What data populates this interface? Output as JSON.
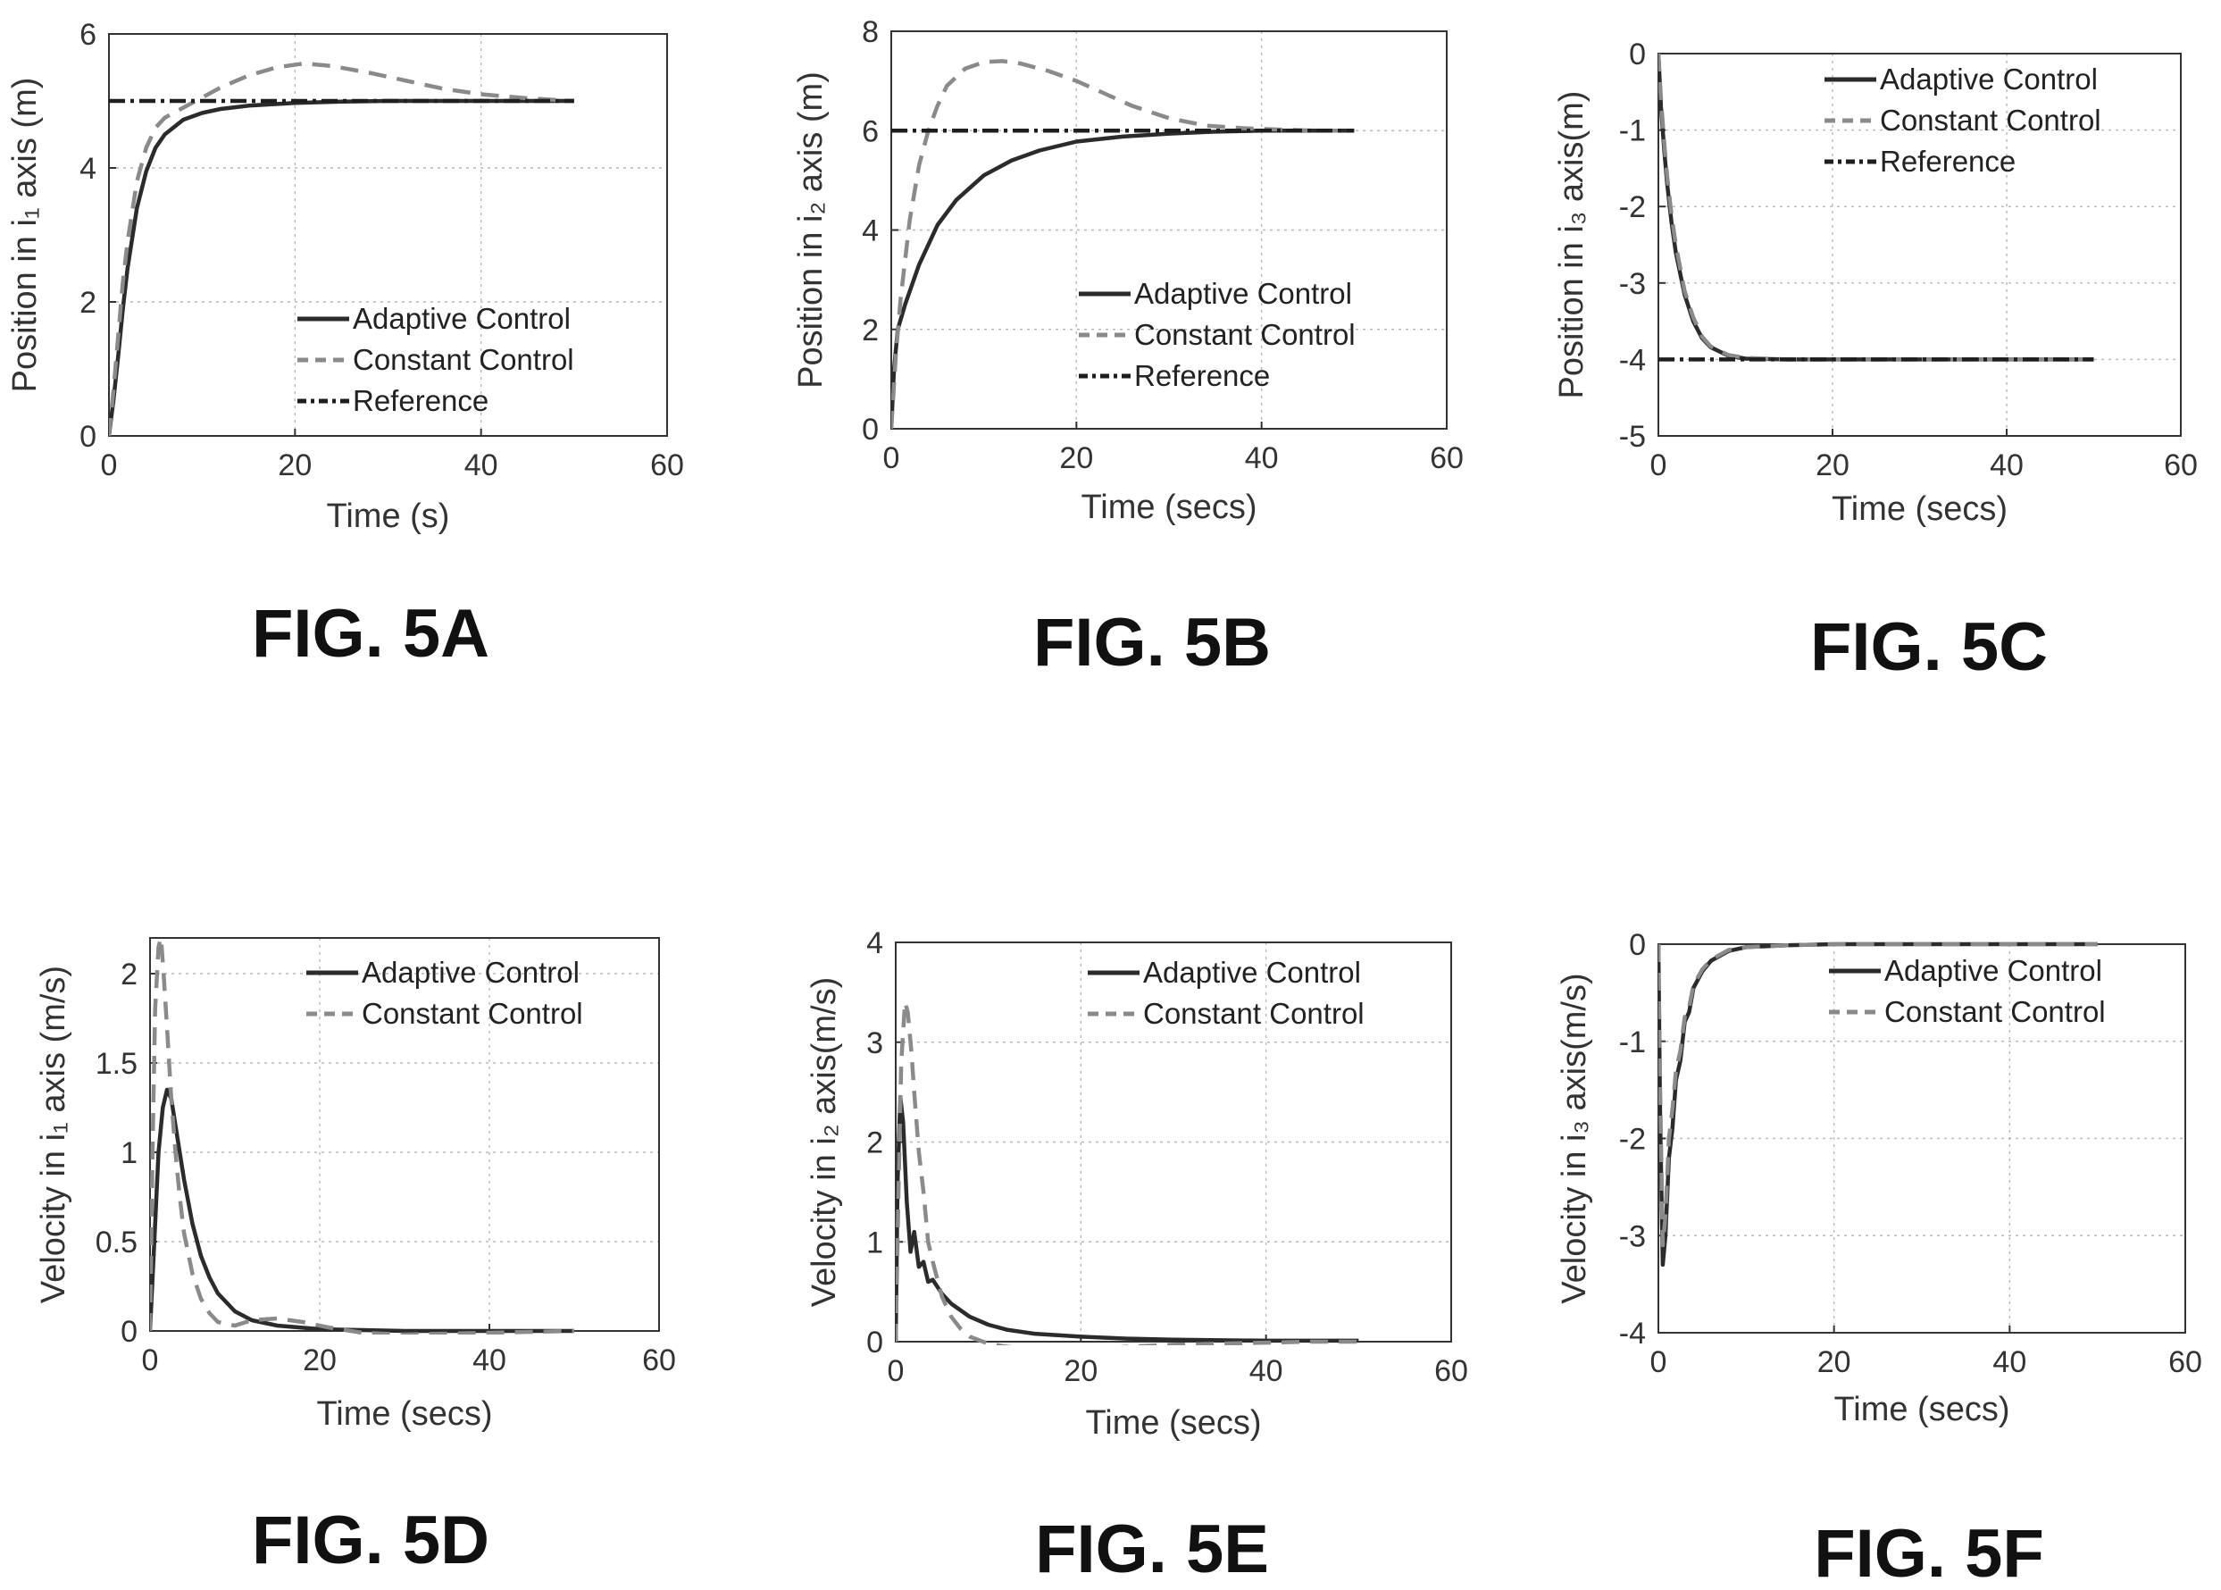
{
  "figures": [
    {
      "label": "FIG. 5A"
    },
    {
      "label": "FIG. 5B"
    },
    {
      "label": "FIG. 5C"
    },
    {
      "label": "FIG. 5D"
    },
    {
      "label": "FIG. 5E"
    },
    {
      "label": "FIG. 5F"
    }
  ],
  "colors": {
    "adaptive": "#2b2b2b",
    "constant": "#8a8a8a",
    "reference": "#1e1e1e",
    "grid": "#b8b8b8",
    "axes": "#333333"
  },
  "chart_data": [
    {
      "type": "line",
      "xlabel": "Time (s)",
      "ylabel": "Position in i₁ axis (m)",
      "xlim": [
        0,
        60
      ],
      "ylim": [
        0,
        6
      ],
      "xticks": [
        0,
        20,
        40,
        60
      ],
      "yticks": [
        0,
        2,
        4,
        6
      ],
      "grid": true,
      "legend_position": "bottom-right",
      "series": [
        {
          "name": "Adaptive Control",
          "style": "solid",
          "x": [
            0,
            0.5,
            1,
            1.5,
            2,
            3,
            4,
            5,
            6,
            8,
            10,
            12,
            15,
            20,
            25,
            30,
            40,
            50
          ],
          "y": [
            0,
            0.55,
            1.2,
            1.9,
            2.5,
            3.4,
            3.95,
            4.3,
            4.5,
            4.72,
            4.82,
            4.88,
            4.93,
            4.97,
            4.99,
            5.0,
            5.0,
            5.0
          ]
        },
        {
          "name": "Constant Control",
          "style": "dashed",
          "x": [
            0,
            0.5,
            1,
            1.5,
            2,
            3,
            4,
            5,
            6,
            8,
            10,
            12,
            15,
            18,
            21,
            24,
            28,
            32,
            36,
            40,
            45,
            50
          ],
          "y": [
            0,
            0.7,
            1.5,
            2.3,
            2.9,
            3.8,
            4.3,
            4.6,
            4.75,
            4.9,
            5.05,
            5.2,
            5.38,
            5.5,
            5.56,
            5.52,
            5.42,
            5.3,
            5.18,
            5.1,
            5.04,
            5.0
          ]
        },
        {
          "name": "Reference",
          "style": "dashdot",
          "x": [
            0,
            50
          ],
          "y": [
            5,
            5
          ]
        }
      ]
    },
    {
      "type": "line",
      "xlabel": "Time (secs)",
      "ylabel": "Position in i₂ axis (m)",
      "xlim": [
        0,
        60
      ],
      "ylim": [
        0,
        8
      ],
      "xticks": [
        0,
        20,
        40,
        60
      ],
      "yticks": [
        0,
        2,
        4,
        6,
        8
      ],
      "grid": true,
      "legend_position": "bottom-right",
      "series": [
        {
          "name": "Adaptive Control",
          "style": "solid",
          "x": [
            0,
            0.3,
            0.7,
            1.5,
            3,
            5,
            7,
            10,
            13,
            16,
            20,
            25,
            30,
            35,
            40,
            50
          ],
          "y": [
            0,
            1.2,
            2.0,
            2.5,
            3.3,
            4.1,
            4.6,
            5.1,
            5.4,
            5.6,
            5.78,
            5.88,
            5.94,
            5.98,
            6.0,
            6.0
          ]
        },
        {
          "name": "Constant Control",
          "style": "dashed",
          "x": [
            0,
            0.5,
            1,
            2,
            3,
            4,
            5,
            6,
            8,
            10,
            12,
            14,
            17,
            20,
            23,
            26,
            30,
            34,
            38,
            42,
            46,
            50
          ],
          "y": [
            0,
            1.5,
            2.6,
            4.2,
            5.3,
            6.0,
            6.5,
            6.9,
            7.25,
            7.38,
            7.4,
            7.35,
            7.2,
            7.0,
            6.75,
            6.5,
            6.25,
            6.1,
            6.05,
            6.02,
            6.0,
            6.0
          ]
        },
        {
          "name": "Reference",
          "style": "dashdot",
          "x": [
            0,
            50
          ],
          "y": [
            6,
            6
          ]
        }
      ]
    },
    {
      "type": "line",
      "xlabel": "Time (secs)",
      "ylabel": "Position in i₃ axis(m)",
      "xlim": [
        0,
        60
      ],
      "ylim": [
        -5,
        0
      ],
      "xticks": [
        0,
        20,
        40,
        60
      ],
      "yticks": [
        -5,
        -4,
        -3,
        -2,
        -1,
        0
      ],
      "grid": true,
      "legend_position": "top-right",
      "series": [
        {
          "name": "Adaptive Control",
          "style": "solid",
          "x": [
            0,
            0.3,
            0.7,
            1,
            1.5,
            2,
            3,
            4,
            5,
            6,
            8,
            10,
            15,
            20,
            30,
            40,
            50
          ],
          "y": [
            0,
            -0.7,
            -1.3,
            -1.7,
            -2.2,
            -2.6,
            -3.15,
            -3.5,
            -3.72,
            -3.84,
            -3.95,
            -3.99,
            -4.0,
            -4.0,
            -4.0,
            -4.0,
            -4.0
          ]
        },
        {
          "name": "Constant Control",
          "style": "dashed",
          "x": [
            0,
            0.3,
            0.7,
            1,
            1.5,
            2,
            3,
            4,
            5,
            6,
            8,
            10,
            15,
            20,
            30,
            40,
            50
          ],
          "y": [
            0,
            -0.6,
            -1.2,
            -1.6,
            -2.1,
            -2.5,
            -3.1,
            -3.45,
            -3.7,
            -3.83,
            -3.94,
            -3.98,
            -4.0,
            -4.0,
            -4.0,
            -4.0,
            -4.0
          ]
        },
        {
          "name": "Reference",
          "style": "dashdot",
          "x": [
            0,
            50
          ],
          "y": [
            -4,
            -4
          ]
        }
      ]
    },
    {
      "type": "line",
      "xlabel": "Time (secs)",
      "ylabel": "Velocity in i₁ axis (m/s)",
      "xlim": [
        0,
        60
      ],
      "ylim": [
        0,
        2.2
      ],
      "xticks": [
        0,
        20,
        40,
        60
      ],
      "yticks": [
        0,
        0.5,
        1,
        1.5,
        2
      ],
      "grid": true,
      "legend_position": "top-right",
      "series": [
        {
          "name": "Adaptive Control",
          "style": "solid",
          "x": [
            0,
            0.5,
            1,
            1.5,
            2,
            2.5,
            3,
            4,
            5,
            6,
            7,
            8,
            10,
            12,
            15,
            20,
            25,
            30,
            40,
            50
          ],
          "y": [
            0,
            0.5,
            1.0,
            1.25,
            1.35,
            1.3,
            1.15,
            0.85,
            0.6,
            0.42,
            0.3,
            0.21,
            0.11,
            0.06,
            0.03,
            0.01,
            0.005,
            0,
            0,
            0
          ]
        },
        {
          "name": "Constant Control",
          "style": "dashed",
          "x": [
            0,
            0.3,
            0.6,
            1,
            1.3,
            1.6,
            2,
            2.5,
            3,
            3.5,
            4,
            5,
            6,
            7,
            8,
            10,
            12,
            15,
            18,
            21,
            25,
            30,
            35,
            40,
            45,
            50
          ],
          "y": [
            0,
            1.0,
            1.8,
            2.15,
            2.2,
            2.0,
            1.7,
            1.3,
            1.0,
            0.75,
            0.55,
            0.32,
            0.18,
            0.1,
            0.05,
            0.03,
            0.06,
            0.07,
            0.05,
            0.02,
            -0.01,
            -0.02,
            -0.015,
            -0.01,
            -0.005,
            0
          ]
        }
      ]
    },
    {
      "type": "line",
      "xlabel": "Time (secs)",
      "ylabel": "Velocity in i₂ axis(m/s)",
      "xlim": [
        0,
        60
      ],
      "ylim": [
        0,
        4
      ],
      "xticks": [
        0,
        20,
        40,
        60
      ],
      "yticks": [
        0,
        1,
        2,
        3,
        4
      ],
      "grid": true,
      "legend_position": "top-right",
      "series": [
        {
          "name": "Adaptive Control",
          "style": "solid",
          "x": [
            0,
            0.2,
            0.5,
            0.8,
            1.2,
            1.6,
            2,
            2.5,
            3,
            3.5,
            4,
            5,
            6,
            8,
            10,
            12,
            15,
            20,
            25,
            30,
            40,
            50
          ],
          "y": [
            0,
            1.6,
            2.45,
            2.2,
            1.4,
            0.9,
            1.1,
            0.75,
            0.8,
            0.6,
            0.62,
            0.48,
            0.38,
            0.25,
            0.17,
            0.12,
            0.08,
            0.05,
            0.03,
            0.02,
            0.01,
            0.01
          ]
        },
        {
          "name": "Constant Control",
          "style": "dashed",
          "x": [
            0,
            0.3,
            0.6,
            1,
            1.3,
            1.7,
            2,
            2.5,
            3,
            3.5,
            4,
            5,
            6,
            7,
            8,
            10,
            12,
            15,
            18,
            21,
            25,
            30,
            35,
            40,
            45,
            50
          ],
          "y": [
            0,
            1.5,
            2.8,
            3.4,
            3.3,
            2.9,
            2.5,
            1.9,
            1.5,
            1.0,
            0.8,
            0.45,
            0.25,
            0.13,
            0.05,
            -0.02,
            -0.05,
            -0.08,
            -0.1,
            -0.08,
            -0.05,
            -0.03,
            -0.02,
            -0.01,
            0,
            0
          ]
        }
      ]
    },
    {
      "type": "line",
      "xlabel": "Time (secs)",
      "ylabel": "Velocity in i₃ axis(m/s)",
      "xlim": [
        0,
        60
      ],
      "ylim": [
        -4,
        0
      ],
      "xticks": [
        0,
        20,
        40,
        60
      ],
      "yticks": [
        -4,
        -3,
        -2,
        -1,
        0
      ],
      "grid": true,
      "legend_position": "top-right",
      "series": [
        {
          "name": "Adaptive Control",
          "style": "solid",
          "x": [
            0,
            0.2,
            0.5,
            0.8,
            1.2,
            1.6,
            2,
            2.5,
            3,
            3.5,
            4,
            5,
            6,
            8,
            10,
            15,
            20,
            30,
            40,
            50
          ],
          "y": [
            0,
            -1.8,
            -3.3,
            -3.0,
            -2.2,
            -1.9,
            -1.4,
            -1.2,
            -0.8,
            -0.7,
            -0.45,
            -0.28,
            -0.17,
            -0.07,
            -0.03,
            -0.01,
            0,
            0,
            0,
            0
          ]
        },
        {
          "name": "Constant Control",
          "style": "dashed",
          "x": [
            0,
            0.2,
            0.5,
            0.8,
            1.2,
            1.6,
            2,
            2.5,
            3,
            3.5,
            4,
            5,
            6,
            8,
            10,
            15,
            20,
            30,
            40,
            50
          ],
          "y": [
            0,
            -1.5,
            -3.1,
            -2.8,
            -2.0,
            -1.7,
            -1.3,
            -1.1,
            -0.75,
            -0.65,
            -0.42,
            -0.26,
            -0.16,
            -0.06,
            -0.03,
            -0.01,
            0,
            0,
            0,
            0
          ]
        }
      ]
    }
  ]
}
